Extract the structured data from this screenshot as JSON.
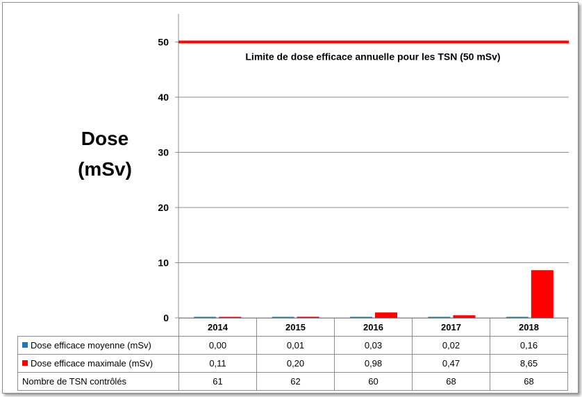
{
  "chart_data": {
    "type": "bar",
    "ylabel_lines": [
      "Dose",
      "(mSv)"
    ],
    "ylim": [
      0,
      55
    ],
    "yticks": [
      0,
      10,
      20,
      30,
      40,
      50
    ],
    "categories": [
      "2014",
      "2015",
      "2016",
      "2017",
      "2018"
    ],
    "series": [
      {
        "name": "Dose efficace moyenne (mSv)",
        "color": "#1f78b4",
        "values": [
          0.0,
          0.01,
          0.03,
          0.02,
          0.16
        ],
        "labels": [
          "0,00",
          "0,01",
          "0,03",
          "0,02",
          "0,16"
        ]
      },
      {
        "name": "Dose efficace maximale (mSv)",
        "color": "#ff0000",
        "values": [
          0.11,
          0.2,
          0.98,
          0.47,
          8.65
        ],
        "labels": [
          "0,11",
          "0,20",
          "0,98",
          "0,47",
          "8,65"
        ]
      }
    ],
    "extra_row": {
      "name": "Nombre de TSN contrôlés",
      "values": [
        "61",
        "62",
        "60",
        "68",
        "68"
      ]
    },
    "reference_line": {
      "value": 50,
      "color": "#ff0000",
      "label": "Limite de dose efficace annuelle pour les TSN (50 mSv)"
    },
    "grid": true,
    "legend": "data-table"
  }
}
